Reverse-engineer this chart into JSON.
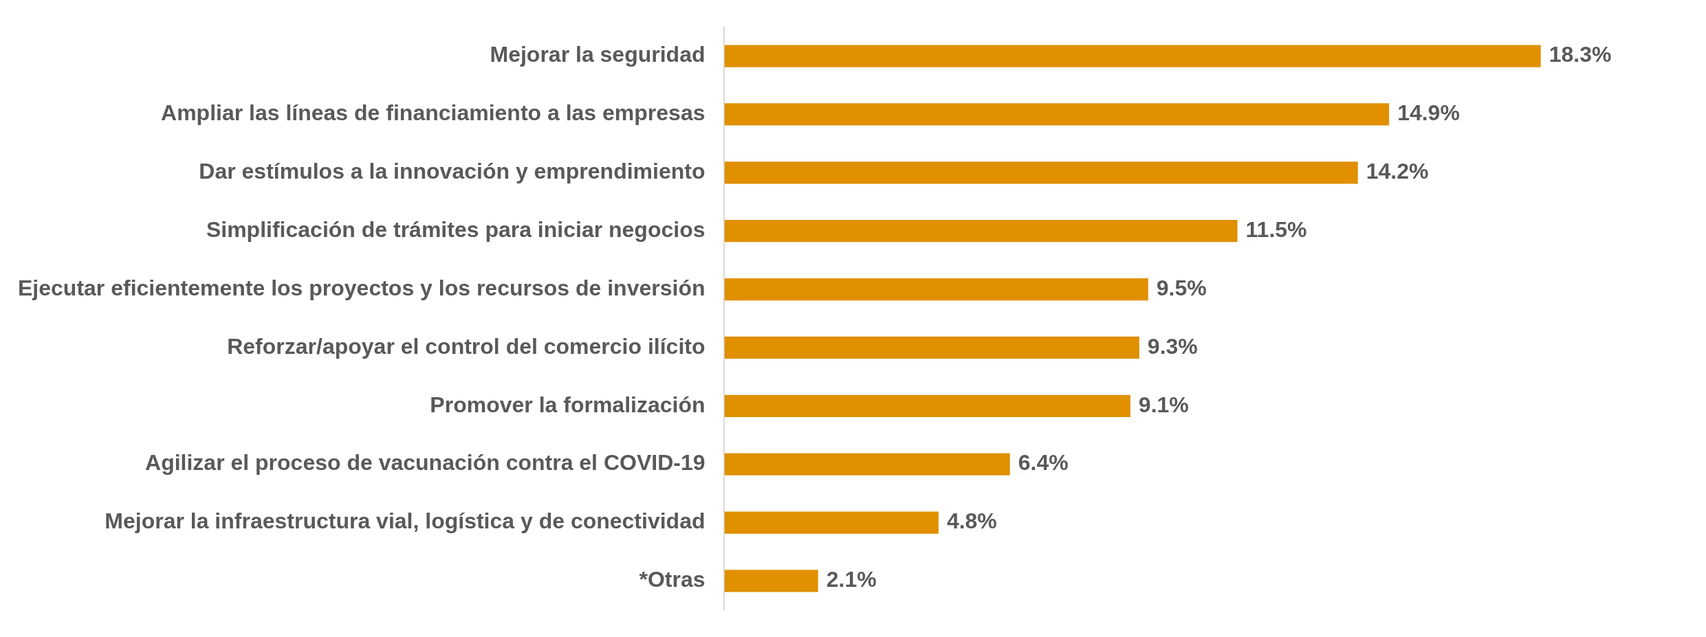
{
  "chart_data": {
    "type": "bar",
    "orientation": "horizontal",
    "categories": [
      "Mejorar la seguridad",
      "Ampliar las líneas de financiamiento a las empresas",
      "Dar estímulos a la innovación y emprendimiento",
      "Simplificación de trámites para iniciar negocios",
      "Ejecutar eficientemente los proyectos y los recursos de inversión",
      "Reforzar/apoyar el control del comercio ilícito",
      "Promover la formalización",
      "Agilizar el proceso de vacunación contra el COVID-19",
      "Mejorar la infraestructura vial, logística y de conectividad",
      "*Otras"
    ],
    "values": [
      18.3,
      14.9,
      14.2,
      11.5,
      9.5,
      9.3,
      9.1,
      6.4,
      4.8,
      2.1
    ],
    "value_labels": [
      "18.3%",
      "14.9%",
      "14.2%",
      "11.5%",
      "9.5%",
      "9.3%",
      "9.1%",
      "6.4%",
      "4.8%",
      "2.1%"
    ],
    "color": "#e09000",
    "grid": false,
    "legend": false,
    "tick_labels": "y"
  }
}
